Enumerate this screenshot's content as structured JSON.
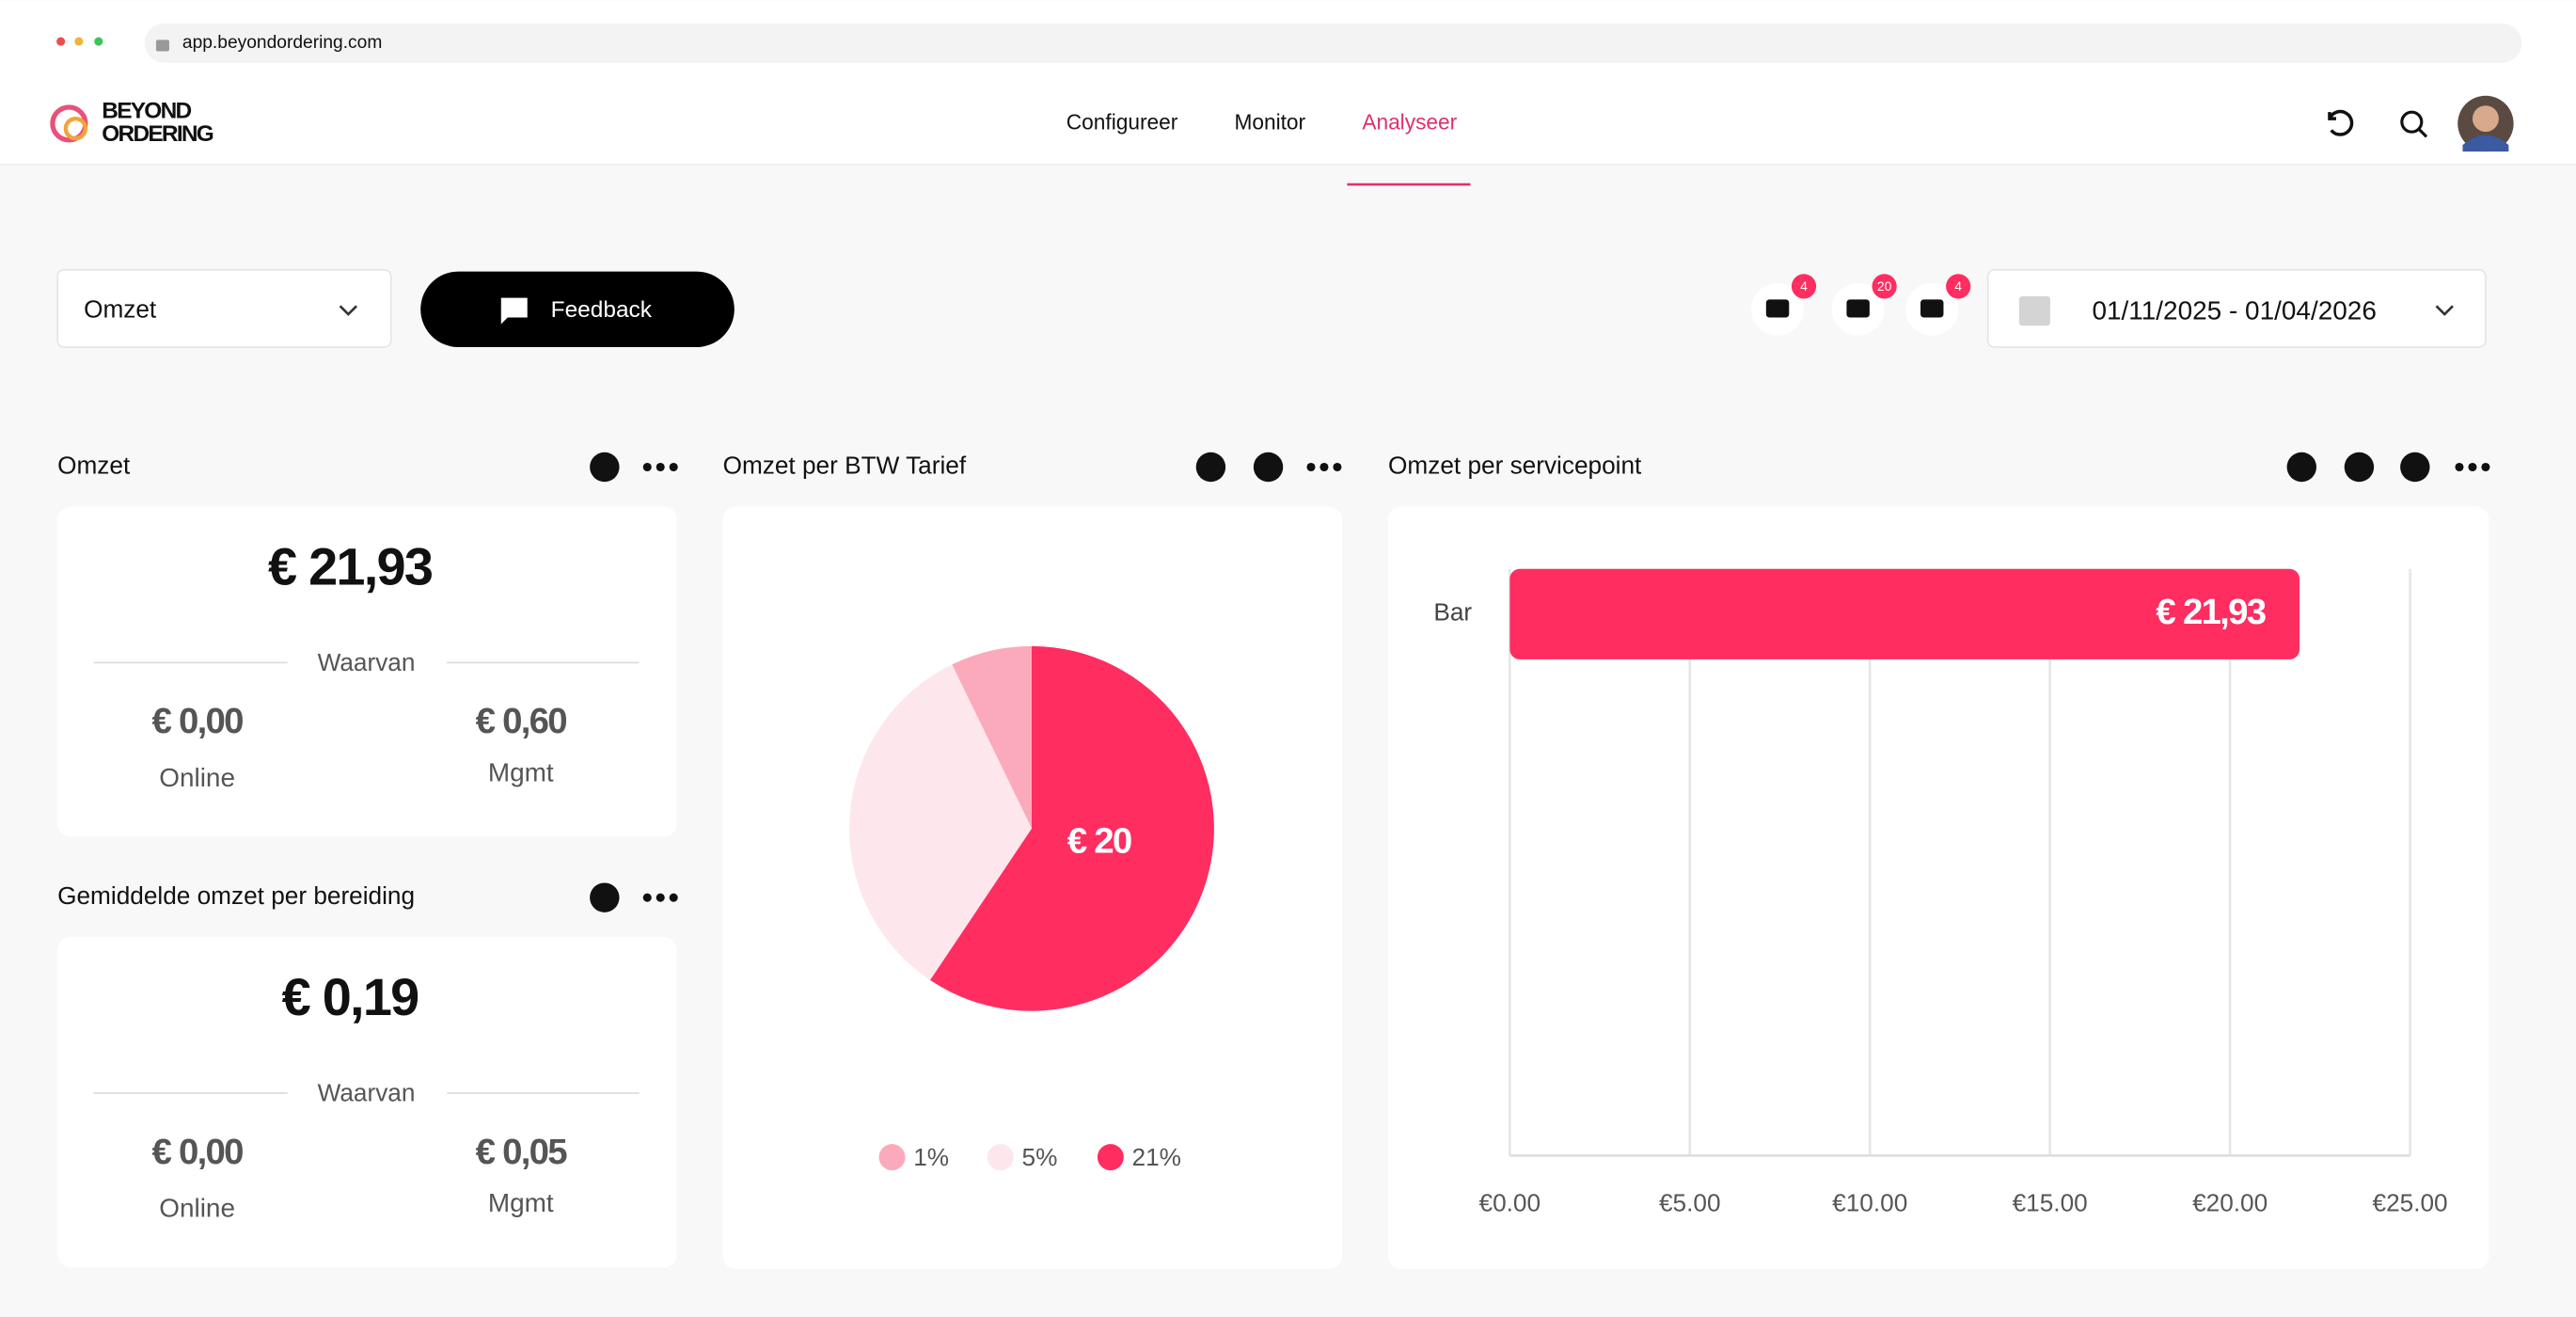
{
  "browser": {
    "url": "app.beyondordering.com"
  },
  "nav": {
    "logo": [
      "BEYOND",
      "ORDERING"
    ],
    "items": [
      "Configureer",
      "Monitor",
      "Analyseer"
    ],
    "active": 2
  },
  "toolbar": {
    "dropdown": "Omzet",
    "feedback": "Feedback",
    "badges": [
      "4",
      "20",
      "4"
    ],
    "date_range": "01/11/2025 - 01/04/2026"
  },
  "cards": [
    {
      "title": "Omzet",
      "total": "€ 21,93",
      "divider": "Waarvan",
      "items": [
        {
          "value": "€ 0,00",
          "label": "Online"
        },
        {
          "value": "€ 0,60",
          "label": "Mgmt"
        }
      ]
    },
    {
      "title": "Gemiddelde omzet per bereiding",
      "total": "€ 0,19",
      "divider": "Waarvan",
      "items": [
        {
          "value": "€ 0,00",
          "label": "Online"
        },
        {
          "value": "€ 0,05",
          "label": "Mgmt"
        }
      ]
    }
  ],
  "chart_data": [
    {
      "type": "pie",
      "title": "Omzet per BTW Tarief",
      "categories": [
        "1%",
        "5%",
        "21%"
      ],
      "values": [
        7.2,
        33.4,
        59.4
      ],
      "colors": [
        "#fbaabb",
        "#fde6ec",
        "#ff2d60"
      ],
      "annotation": "€ 20"
    },
    {
      "type": "bar",
      "title": "Omzet per servicepoint",
      "categories": [
        "Bar"
      ],
      "values": [
        21.93
      ],
      "value_labels": [
        "€ 21,93"
      ],
      "color": "#ff2d60",
      "xlim": [
        0,
        25
      ],
      "xticks": [
        {
          "value": 0,
          "label": "€0.00"
        },
        {
          "value": 5,
          "label": "€5.00"
        },
        {
          "value": 10,
          "label": "€10.00"
        },
        {
          "value": 15,
          "label": "€15.00"
        },
        {
          "value": 20,
          "label": "€20.00"
        },
        {
          "value": 25,
          "label": "€25.00"
        }
      ],
      "grid": true
    }
  ]
}
